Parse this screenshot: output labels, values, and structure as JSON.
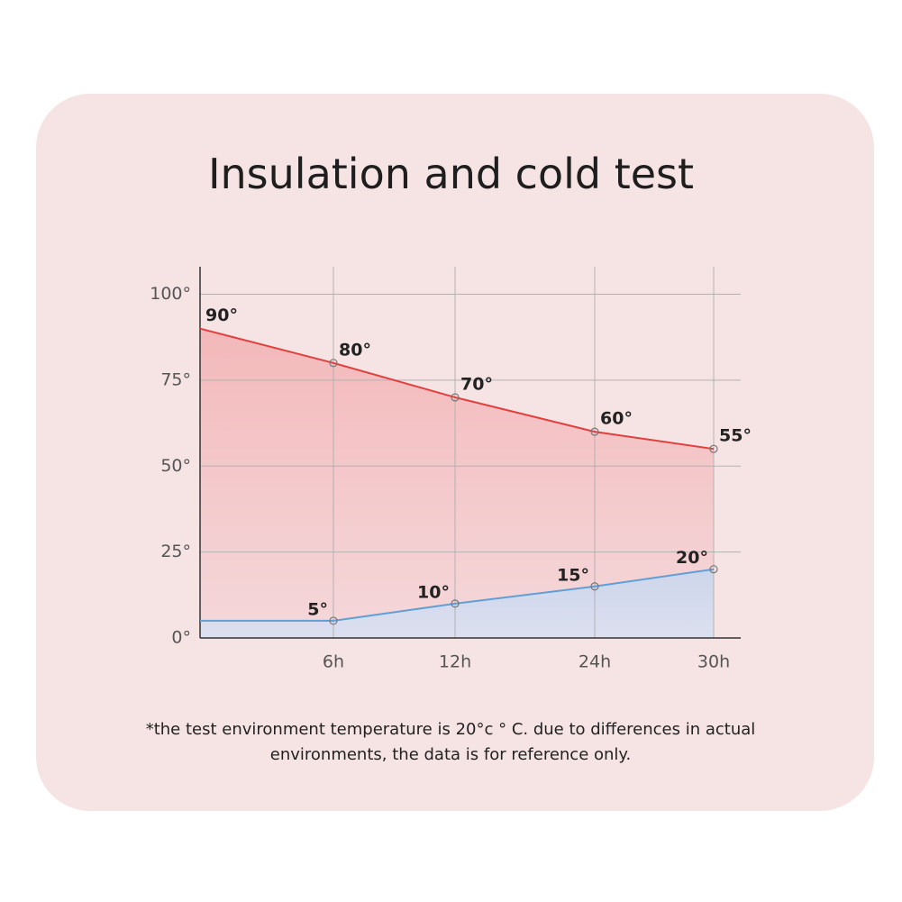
{
  "chart_data": {
    "type": "line",
    "title": "Insulation and cold test",
    "categories": [
      null,
      "6h",
      "12h",
      "24h",
      "30h"
    ],
    "series": [
      {
        "color": "#e2403f",
        "values": [
          90,
          80,
          70,
          60,
          55
        ],
        "value_labels": [
          "90°",
          "80°",
          "70°",
          "60°",
          "55°"
        ]
      },
      {
        "color": "#5f9fd8",
        "values": [
          5,
          5,
          10,
          15,
          20
        ],
        "value_labels": [
          null,
          "5°",
          "10°",
          "15°",
          "20°"
        ]
      }
    ],
    "ylim": [
      0,
      108
    ],
    "yticks": [
      {
        "value": 0,
        "label": "0°"
      },
      {
        "value": 25,
        "label": "25°"
      },
      {
        "value": 50,
        "label": "50°"
      },
      {
        "value": 75,
        "label": "75°"
      },
      {
        "value": 100,
        "label": "100°"
      }
    ],
    "grid": true,
    "note": [
      "*the test environment temperature is 20°c ° C. due to differences in actual",
      "environments, the data is for reference only."
    ]
  }
}
